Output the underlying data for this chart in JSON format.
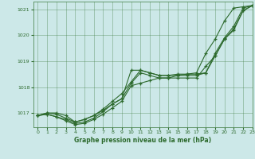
{
  "title": "Graphe pression niveau de la mer (hPa)",
  "bg_color": "#cce8e8",
  "grid_color": "#3d7a3d",
  "line_color": "#2d6a2d",
  "marker": "+",
  "xlim": [
    -0.5,
    23
  ],
  "ylim": [
    1016.45,
    1021.3
  ],
  "yticks": [
    1017,
    1018,
    1019,
    1020,
    1021
  ],
  "xticks": [
    0,
    1,
    2,
    3,
    4,
    5,
    6,
    7,
    8,
    9,
    10,
    11,
    12,
    13,
    14,
    15,
    16,
    17,
    18,
    19,
    20,
    21,
    22,
    23
  ],
  "series": [
    [
      1016.9,
      1017.0,
      1017.0,
      1016.9,
      1016.65,
      1016.75,
      1016.9,
      1017.1,
      1017.35,
      1017.55,
      1018.65,
      1018.65,
      1018.55,
      1018.45,
      1018.45,
      1018.5,
      1018.5,
      1018.5,
      1018.55,
      1019.3,
      1019.9,
      1020.35,
      1021.05,
      1021.15
    ],
    [
      1016.9,
      1017.0,
      1016.95,
      1016.8,
      1016.65,
      1016.75,
      1016.9,
      1017.15,
      1017.45,
      1017.75,
      1018.2,
      1018.65,
      1018.55,
      1018.45,
      1018.45,
      1018.45,
      1018.45,
      1018.45,
      1018.55,
      1019.2,
      1019.85,
      1020.25,
      1020.95,
      1021.15
    ],
    [
      1016.9,
      1016.95,
      1016.85,
      1016.75,
      1016.6,
      1016.65,
      1016.8,
      1017.05,
      1017.35,
      1017.55,
      1018.15,
      1018.55,
      1018.45,
      1018.35,
      1018.35,
      1018.35,
      1018.35,
      1018.35,
      1018.8,
      1019.2,
      1019.85,
      1020.2,
      1020.95,
      1021.15
    ],
    [
      1016.9,
      1016.95,
      1016.85,
      1016.7,
      1016.55,
      1016.6,
      1016.75,
      1016.95,
      1017.2,
      1017.45,
      1018.05,
      1018.15,
      1018.25,
      1018.35,
      1018.35,
      1018.45,
      1018.5,
      1018.55,
      1019.3,
      1019.85,
      1020.55,
      1021.05,
      1021.1,
      1021.15
    ]
  ]
}
